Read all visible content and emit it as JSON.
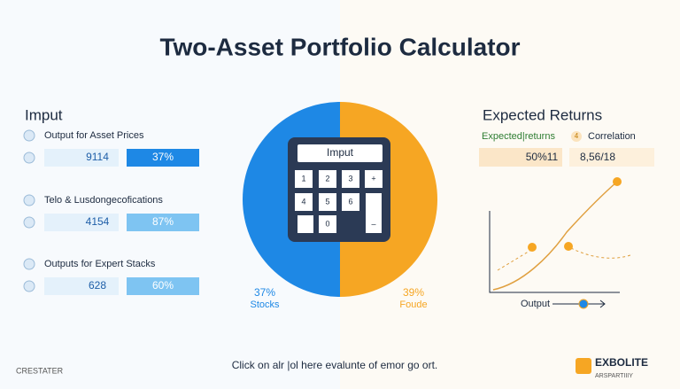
{
  "header": {
    "title": "Two-Asset Portfolio Calculator"
  },
  "input_panel": {
    "heading": "Imput",
    "rows": [
      {
        "label": "Output for Asset Prices",
        "fields": [
          "9114",
          "37%"
        ]
      },
      {
        "label": "Telo & Lusdongecofications",
        "fields": [
          "4154",
          "87%"
        ]
      },
      {
        "label": "Outputs for Expert Stacks",
        "fields": [
          "628",
          "60%"
        ]
      }
    ]
  },
  "calculator": {
    "screen": "Imput",
    "keys": [
      "1",
      "2",
      "3",
      "+",
      "4",
      "5",
      "6",
      "0",
      "–"
    ]
  },
  "pie_labels": [
    {
      "value": "37%",
      "name": "Stocks"
    },
    {
      "value": "39%",
      "name": "Foude"
    }
  ],
  "returns_panel": {
    "heading": "Expected Returns",
    "tabs": [
      "Expected|returns",
      "Correlation"
    ],
    "tab_icon": "4",
    "fields": [
      "50%11",
      "8,56/18"
    ],
    "chart_label": "Output"
  },
  "footer": {
    "text": "Click on alr |ol here evalunte of emor go ort.",
    "left_logo": "CRESTATER",
    "right_logo": "EXBOLITE",
    "right_logo_sub": "ARSPARTIIIY"
  }
}
